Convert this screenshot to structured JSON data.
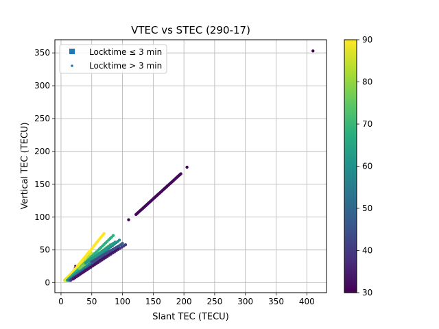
{
  "chart_data": {
    "type": "scatter",
    "title": "VTEC vs STEC (290-17)",
    "xlabel": "Slant TEC (TECU)",
    "ylabel": "Vertical TEC (TECU)",
    "xlim": [
      -10,
      432
    ],
    "ylim": [
      -15,
      370
    ],
    "xticks": [
      0,
      50,
      100,
      150,
      200,
      250,
      300,
      350,
      400
    ],
    "yticks": [
      0,
      50,
      100,
      150,
      200,
      250,
      300,
      350
    ],
    "grid": true,
    "legend_position": "top-left",
    "colorbar": {
      "min": 30,
      "max": 90,
      "ticks": [
        30,
        40,
        50,
        60,
        70,
        80,
        90
      ],
      "colormap": "viridis"
    },
    "series": [
      {
        "name": "Locktime ≤ 3 min",
        "marker": "square",
        "color": "#1f77b4",
        "points": [
          {
            "x": 25,
            "y": 24,
            "c": 30
          },
          {
            "x": 27,
            "y": 22,
            "c": 32
          },
          {
            "x": 24,
            "y": 20,
            "c": 31
          },
          {
            "x": 28,
            "y": 18,
            "c": 33
          },
          {
            "x": 22,
            "y": 16,
            "c": 30
          }
        ]
      },
      {
        "name": "Locktime > 3 min",
        "marker": "circle",
        "color": "#1f77b4",
        "points": [
          {
            "x": 410,
            "y": 353,
            "c": 30
          },
          {
            "x": 205,
            "y": 176,
            "c": 30
          },
          {
            "x": 110,
            "y": 96,
            "c": 30
          },
          {
            "x": 45,
            "y": 42,
            "c": 30
          }
        ],
        "segments": [
          {
            "x0": 122,
            "y0": 104,
            "x1": 195,
            "y1": 166,
            "c": 31,
            "n": 60
          },
          {
            "x0": 6,
            "y0": 4,
            "x1": 50,
            "y1": 45,
            "c": 85,
            "n": 25
          },
          {
            "x0": 8,
            "y0": 4,
            "x1": 70,
            "y1": 75,
            "c": 90,
            "n": 30
          },
          {
            "x0": 10,
            "y0": 4,
            "x1": 85,
            "y1": 72,
            "c": 68,
            "n": 30
          },
          {
            "x0": 12,
            "y0": 4,
            "x1": 95,
            "y1": 65,
            "c": 58,
            "n": 30
          },
          {
            "x0": 14,
            "y0": 4,
            "x1": 100,
            "y1": 60,
            "c": 48,
            "n": 30
          },
          {
            "x0": 16,
            "y0": 4,
            "x1": 105,
            "y1": 58,
            "c": 40,
            "n": 30
          },
          {
            "x0": 20,
            "y0": 6,
            "x1": 92,
            "y1": 52,
            "c": 33,
            "n": 28
          },
          {
            "x0": 30,
            "y0": 22,
            "x1": 80,
            "y1": 58,
            "c": 78,
            "n": 18
          },
          {
            "x0": 40,
            "y0": 30,
            "x1": 88,
            "y1": 62,
            "c": 62,
            "n": 18
          },
          {
            "x0": 50,
            "y0": 32,
            "x1": 92,
            "y1": 55,
            "c": 44,
            "n": 16
          }
        ]
      }
    ]
  }
}
